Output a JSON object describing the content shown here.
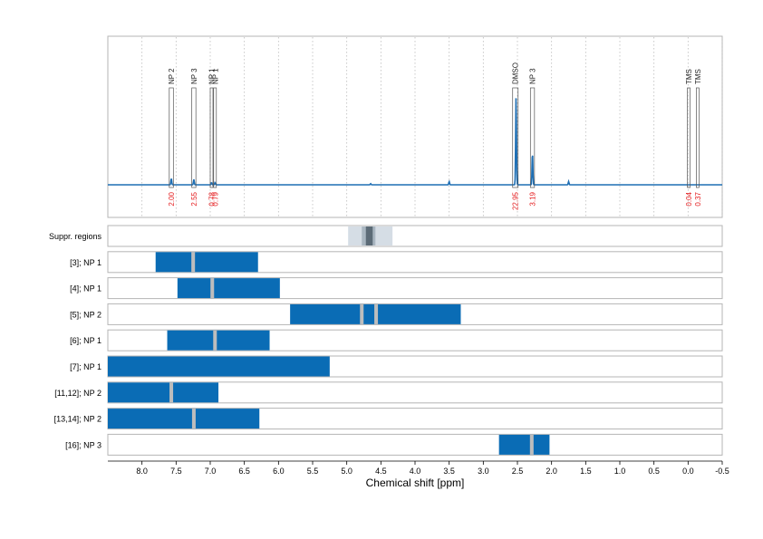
{
  "colors": {
    "spectrum": "#1f6fb4",
    "bar": "#0a6cb5",
    "integral_text": "#e41a1c",
    "frame": "#b5b5b5",
    "grid": "#bcbcbc",
    "divider": "#bdbdbd",
    "suppr_light": "#d5dde5",
    "suppr_mid": "#a9b6c1",
    "suppr_dark": "#5c6b77"
  },
  "chart_data": {
    "type": "nmr-spectrum-with-region-bars",
    "xlabel": "Chemical shift [ppm]",
    "x_axis": {
      "reversed": true,
      "min": -0.5,
      "max": 8.5,
      "ticks": [
        "8.0",
        "7.5",
        "7.0",
        "6.5",
        "6.0",
        "5.5",
        "5.0",
        "4.5",
        "4.0",
        "3.5",
        "3.0",
        "2.5",
        "2.0",
        "1.5",
        "1.0",
        "0.5",
        "0.0",
        "-0.5"
      ]
    },
    "grid": "vertical dotted",
    "spectrum": {
      "baseline": 0,
      "peaks": [
        {
          "ppm": 7.57,
          "height": 0.06
        },
        {
          "ppm": 7.24,
          "height": 0.05
        },
        {
          "ppm": 6.98,
          "height": 0.02
        },
        {
          "ppm": 6.93,
          "height": 0.02
        },
        {
          "ppm": 4.65,
          "height": 0.01
        },
        {
          "ppm": 3.5,
          "height": 0.03
        },
        {
          "ppm": 2.52,
          "height": 0.82
        },
        {
          "ppm": 2.28,
          "height": 0.3
        },
        {
          "ppm": 1.75,
          "height": 0.03
        }
      ]
    },
    "annotations": [
      {
        "label": "NP 2",
        "from": 7.6,
        "to": 7.54,
        "integral": "2.00"
      },
      {
        "label": "NP 3",
        "from": 7.27,
        "to": 7.21,
        "integral": "2.55"
      },
      {
        "label": "NP 1",
        "from": 7.0,
        "to": 6.96,
        "integral": "0.78"
      },
      {
        "label": "NP 1",
        "from": 6.95,
        "to": 6.91,
        "integral": "0.79"
      },
      {
        "label": "DMSO",
        "from": 2.57,
        "to": 2.49,
        "integral": "22.95"
      },
      {
        "label": "NP 3",
        "from": 2.31,
        "to": 2.25,
        "integral": "3.19"
      },
      {
        "label": "TMS",
        "from": 0.01,
        "to": -0.01,
        "integral": "0.04"
      },
      {
        "label": "TMS",
        "from": -0.12,
        "to": -0.15,
        "integral": "0.37"
      }
    ],
    "suppression": {
      "label": "Suppr. regions",
      "outer": [
        4.98,
        4.33
      ],
      "mid": [
        4.78,
        4.58
      ],
      "inner": [
        4.72,
        4.62
      ]
    },
    "rows": [
      {
        "label": "[3]; NP 1",
        "from": 7.8,
        "to": 6.3,
        "dividers": [
          7.25
        ]
      },
      {
        "label": "[4]; NP 1",
        "from": 7.48,
        "to": 5.98,
        "dividers": [
          6.97
        ]
      },
      {
        "label": "[5]; NP 2",
        "from": 5.83,
        "to": 3.33,
        "dividers": [
          4.78,
          4.57
        ]
      },
      {
        "label": "[6]; NP 1",
        "from": 7.63,
        "to": 6.13,
        "dividers": [
          6.93
        ]
      },
      {
        "label": "[7]; NP 1",
        "from": 8.5,
        "to": 5.25,
        "dividers": []
      },
      {
        "label": "[11,12]; NP 2",
        "from": 8.5,
        "to": 6.88,
        "dividers": [
          7.57
        ]
      },
      {
        "label": "[13,14]; NP 2",
        "from": 8.5,
        "to": 6.28,
        "dividers": [
          7.24
        ]
      },
      {
        "label": "[16]; NP 3",
        "from": 2.77,
        "to": 2.03,
        "dividers": [
          2.29
        ]
      }
    ]
  }
}
